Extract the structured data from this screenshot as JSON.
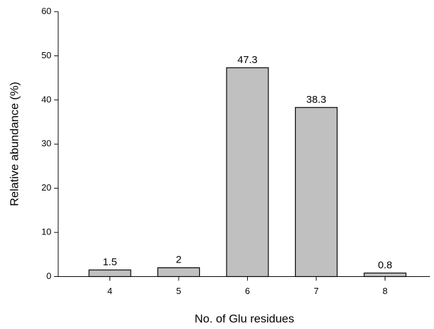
{
  "chart_data": {
    "type": "bar",
    "xlabel": "No. of Glu residues",
    "ylabel": "Relative abundance (%)",
    "categories": [
      "4",
      "5",
      "6",
      "7",
      "8"
    ],
    "values": [
      1.5,
      2,
      47.3,
      38.3,
      0.8
    ],
    "color": "#c0c0c0",
    "ylim": [
      0,
      60
    ],
    "yticks": [
      0,
      10,
      20,
      30,
      40,
      50,
      60
    ],
    "grid": false
  }
}
